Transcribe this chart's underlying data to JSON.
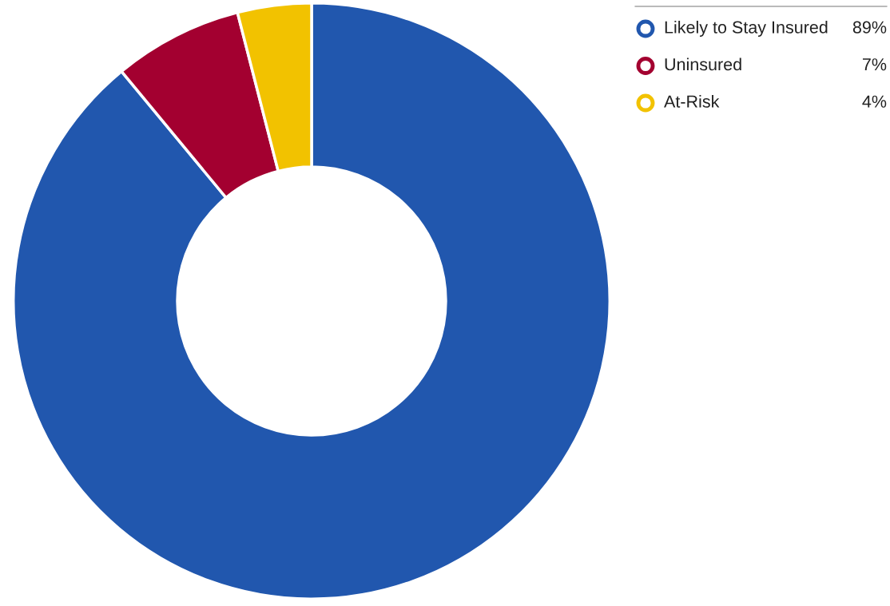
{
  "chart_data": {
    "type": "donut",
    "categories": [
      "Likely to Stay Insured",
      "Uninsured",
      "At-Risk"
    ],
    "values": [
      89,
      7,
      4
    ],
    "colors": [
      "#2157ae",
      "#a30030",
      "#f2c200"
    ],
    "value_labels": [
      "89%",
      "7%",
      "4%"
    ],
    "legend": "top right"
  }
}
